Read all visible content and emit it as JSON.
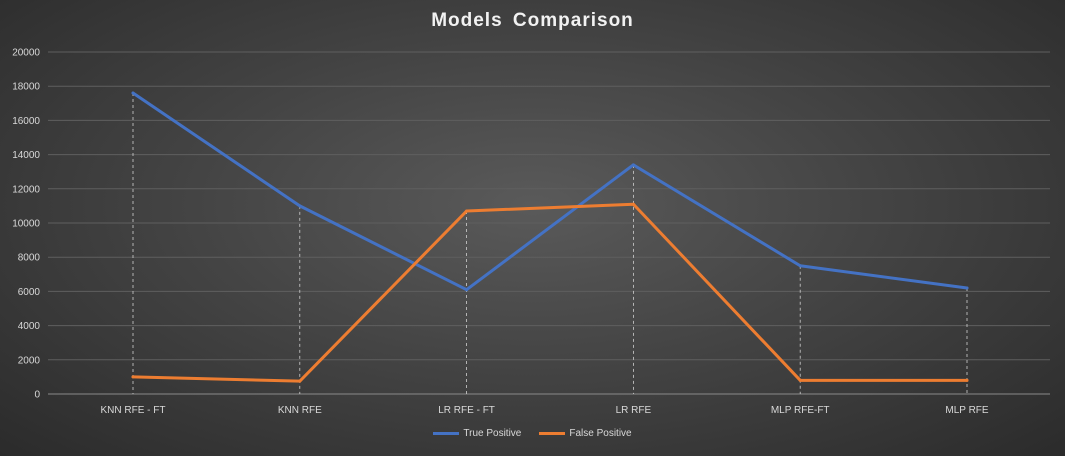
{
  "chart_data": {
    "type": "line",
    "title": "Models Comparison",
    "categories": [
      "KNN RFE - FT",
      "KNN RFE",
      "LR RFE - FT",
      "LR RFE",
      "MLP RFE-FT",
      "MLP RFE"
    ],
    "series": [
      {
        "name": "True Positive",
        "color": "#4472c4",
        "values": [
          17600,
          11000,
          6100,
          13400,
          7500,
          6200
        ]
      },
      {
        "name": "False Positive",
        "color": "#ed7d31",
        "values": [
          1000,
          750,
          10700,
          11100,
          800,
          800
        ]
      }
    ],
    "ylim": [
      0,
      20000
    ],
    "yticks": [
      0,
      2000,
      4000,
      6000,
      8000,
      10000,
      12000,
      14000,
      16000,
      18000,
      20000
    ],
    "grid": true,
    "drop_lines": true,
    "legend_position": "bottom"
  }
}
